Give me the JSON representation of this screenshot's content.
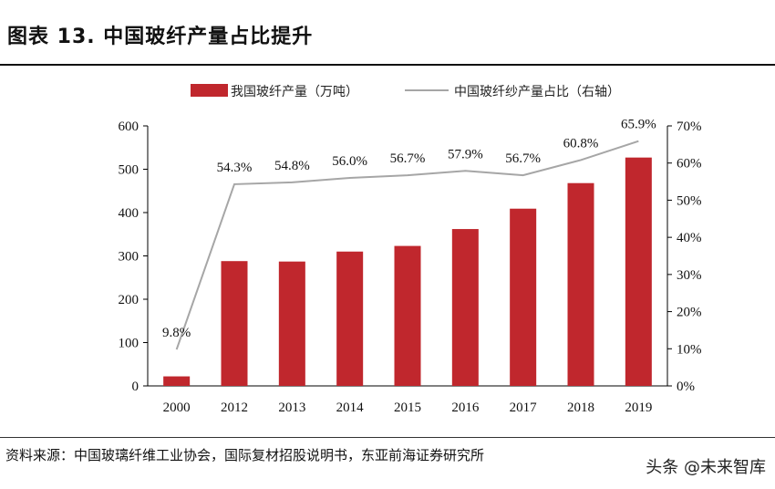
{
  "title": "图表 13. 中国玻纤产量占比提升",
  "source": "资料来源：中国玻璃纤维工业协会，国际复材招股说明书，东亚前海证券研究所",
  "watermark": "头条 @未来智库",
  "colors": {
    "bar": "#c0272d",
    "line": "#a6a6a6",
    "axis": "#000000"
  },
  "chart_data": {
    "type": "bar+line",
    "categories": [
      "2000",
      "2012",
      "2013",
      "2014",
      "2015",
      "2016",
      "2017",
      "2018",
      "2019"
    ],
    "series": [
      {
        "name": "我国玻纤产量（万吨）",
        "type": "bar",
        "axis": "left",
        "values": [
          22,
          288,
          287,
          310,
          323,
          362,
          409,
          468,
          527
        ]
      },
      {
        "name": "中国玻纤纱产量占比（右轴）",
        "type": "line",
        "axis": "right",
        "values": [
          9.8,
          54.3,
          54.8,
          56.0,
          56.7,
          57.9,
          56.7,
          60.8,
          65.9
        ],
        "labels": [
          "9.8%",
          "54.3%",
          "54.8%",
          "56.0%",
          "56.7%",
          "57.9%",
          "56.7%",
          "60.8%",
          "65.9%"
        ]
      }
    ],
    "y_left": {
      "min": 0,
      "max": 600,
      "ticks": [
        "0",
        "100",
        "200",
        "300",
        "400",
        "500",
        "600"
      ]
    },
    "y_right": {
      "min": 0,
      "max": 70,
      "ticks": [
        "0%",
        "10%",
        "20%",
        "30%",
        "40%",
        "50%",
        "60%",
        "70%"
      ]
    },
    "legend_position": "top",
    "grid": false
  }
}
